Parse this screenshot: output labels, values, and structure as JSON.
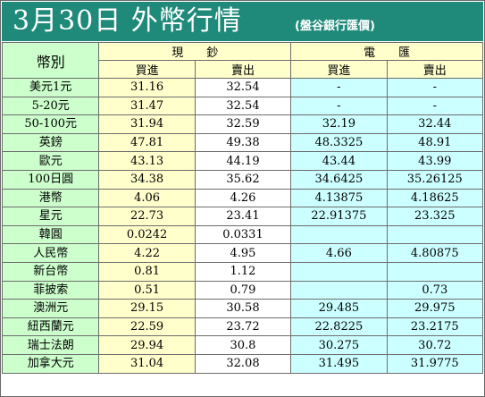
{
  "title": "3月30日 外幣行情",
  "source": "(盤谷銀行匯價)",
  "header": {
    "currency": "幣別",
    "cash": "現　　鈔",
    "telegraphic": "電　　匯",
    "buy": "買進",
    "sell": "賣出"
  },
  "rows": [
    {
      "name": "美元1元",
      "cash_buy": "31.16",
      "cash_sell": "32.54",
      "tt_buy": "-",
      "tt_sell": "-"
    },
    {
      "name": "5-20元",
      "cash_buy": "31.47",
      "cash_sell": "32.54",
      "tt_buy": "-",
      "tt_sell": "-"
    },
    {
      "name": "50-100元",
      "cash_buy": "31.94",
      "cash_sell": "32.59",
      "tt_buy": "32.19",
      "tt_sell": "32.44"
    },
    {
      "name": "英鎊",
      "cash_buy": "47.81",
      "cash_sell": "49.38",
      "tt_buy": "48.3325",
      "tt_sell": "48.91"
    },
    {
      "name": "歐元",
      "cash_buy": "43.13",
      "cash_sell": "44.19",
      "tt_buy": "43.44",
      "tt_sell": "43.99"
    },
    {
      "name": "100日圓",
      "cash_buy": "34.38",
      "cash_sell": "35.62",
      "tt_buy": "34.6425",
      "tt_sell": "35.26125"
    },
    {
      "name": "港幣",
      "cash_buy": "4.06",
      "cash_sell": "4.26",
      "tt_buy": "4.13875",
      "tt_sell": "4.18625"
    },
    {
      "name": "星元",
      "cash_buy": "22.73",
      "cash_sell": "23.41",
      "tt_buy": "22.91375",
      "tt_sell": "23.325"
    },
    {
      "name": "韓圓",
      "cash_buy": "0.0242",
      "cash_sell": "0.0331",
      "tt_buy": "",
      "tt_sell": ""
    },
    {
      "name": "人民幣",
      "cash_buy": "4.22",
      "cash_sell": "4.95",
      "tt_buy": "4.66",
      "tt_sell": "4.80875"
    },
    {
      "name": "新台幣",
      "cash_buy": "0.81",
      "cash_sell": "1.12",
      "tt_buy": "",
      "tt_sell": ""
    },
    {
      "name": "菲披索",
      "cash_buy": "0.51",
      "cash_sell": "0.79",
      "tt_buy": "",
      "tt_sell": "0.73"
    },
    {
      "name": "澳洲元",
      "cash_buy": "29.15",
      "cash_sell": "30.58",
      "tt_buy": "29.485",
      "tt_sell": "29.975"
    },
    {
      "name": "紐西蘭元",
      "cash_buy": "22.59",
      "cash_sell": "23.72",
      "tt_buy": "22.8225",
      "tt_sell": "23.2175"
    },
    {
      "name": "瑞士法朗",
      "cash_buy": "29.94",
      "cash_sell": "30.8",
      "tt_buy": "30.275",
      "tt_sell": "30.72"
    },
    {
      "name": "加拿大元",
      "cash_buy": "31.04",
      "cash_sell": "32.08",
      "tt_buy": "31.495",
      "tt_sell": "31.9775"
    }
  ],
  "colors": {
    "title_bg": "#1f8a7a",
    "name_bg": "#ccffcc",
    "cash_buy_bg": "#ffffcc",
    "cash_sell_bg": "#ffffff",
    "tt_buy_bg": "#ccffff",
    "tt_sell_bg": "#ccffff",
    "border": "#6d6d6d"
  }
}
